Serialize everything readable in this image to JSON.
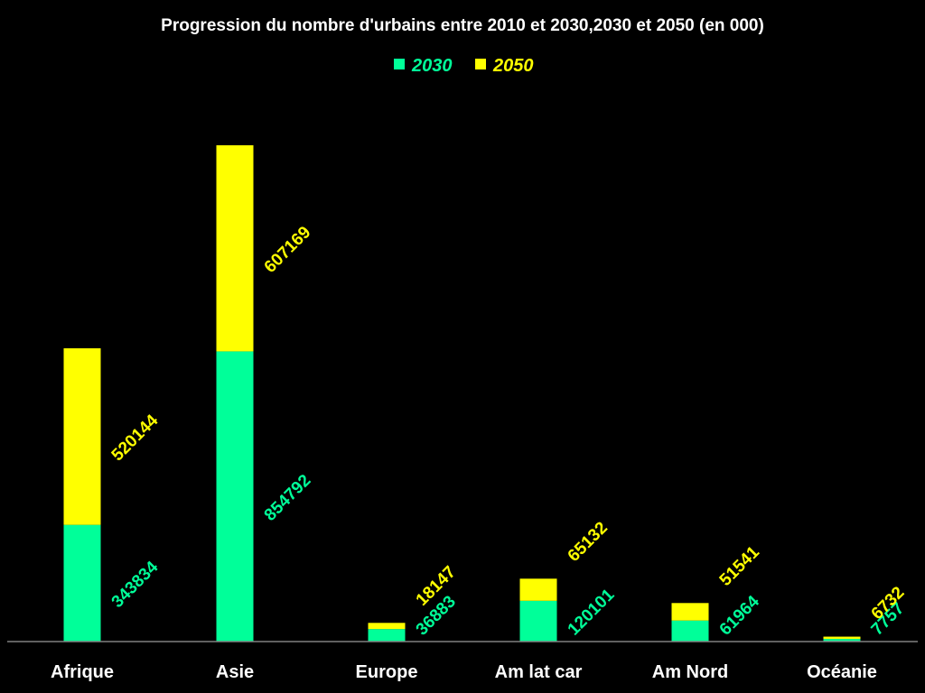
{
  "chart_data": {
    "type": "bar",
    "stacked": true,
    "title": "Progression du nombre d'urbains entre 2010 et 2030,2030 et 2050 (en 000)",
    "categories": [
      "Afrique",
      "Asie",
      "Europe",
      "Am lat car",
      "Am Nord",
      "Océanie"
    ],
    "series": [
      {
        "name": "2030",
        "color": "#00ff99",
        "values": [
          343834,
          854792,
          36883,
          120101,
          61964,
          7757
        ]
      },
      {
        "name": "2050",
        "color": "#ffff00",
        "values": [
          520144,
          607169,
          18147,
          65132,
          51541,
          6732
        ]
      }
    ],
    "legend": "top-center",
    "grid": false,
    "axis_color": "#808080",
    "background": "#000000"
  }
}
